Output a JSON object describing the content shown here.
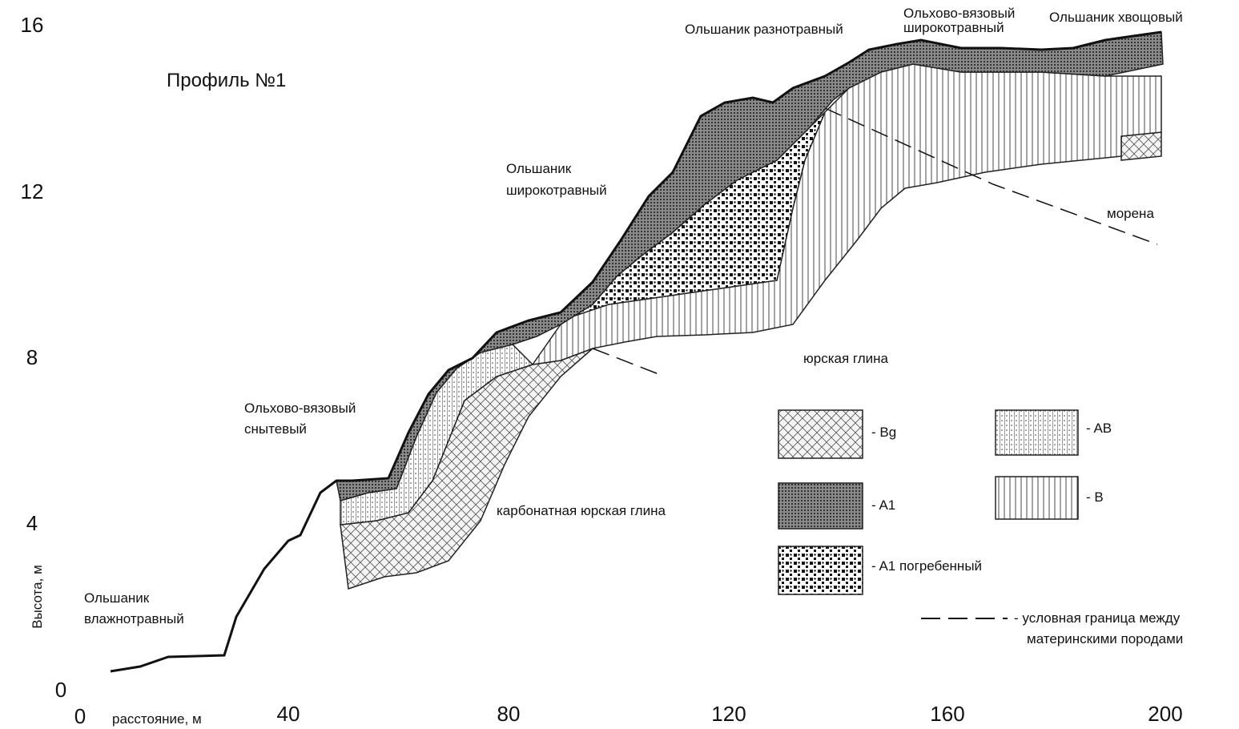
{
  "title": "Профиль №1",
  "axes": {
    "y_label": "Высота, м",
    "x_label": "расстояние, м",
    "y_ticks": [
      "0",
      "4",
      "8",
      "12",
      "16"
    ],
    "x_ticks": [
      "0",
      "40",
      "80",
      "120",
      "160",
      "200"
    ]
  },
  "vegetation_labels": [
    [
      "Ольшаник",
      "влажнотравный"
    ],
    [
      "Ольхово-вязовый",
      "снытевый"
    ],
    [
      "Ольшаник",
      "широкотравный"
    ],
    [
      "Ольшаник разнотравный"
    ],
    [
      "Ольхово-вязовый",
      "широкотравный"
    ],
    [
      "Ольшаник хвощовый"
    ]
  ],
  "rock_labels": [
    "юрская глина",
    "карбонатная юрская глина",
    "морена"
  ],
  "legend": [
    "- Bg",
    "- A1",
    "- A1 погребенный",
    "- AB",
    "- B"
  ],
  "boundary_note": [
    "- условная граница между",
    "материнскими породами"
  ]
}
